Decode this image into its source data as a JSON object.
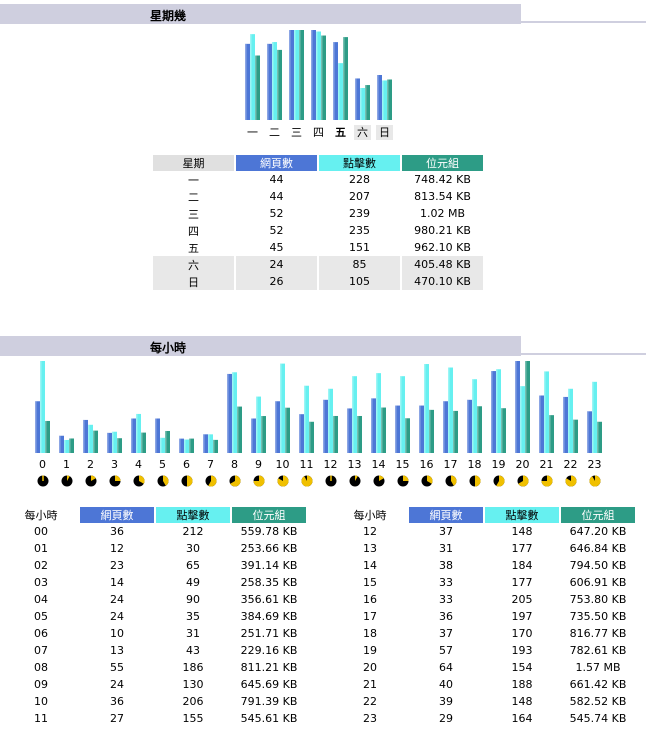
{
  "weekday": {
    "title": "星期幾",
    "headers": [
      "星期",
      "網頁數",
      "點擊數",
      "位元組"
    ],
    "rows": [
      {
        "day": "一",
        "pages": "44",
        "hits": "228",
        "bytes": "748.42 KB",
        "weekend": false
      },
      {
        "day": "二",
        "pages": "44",
        "hits": "207",
        "bytes": "813.54 KB",
        "weekend": false
      },
      {
        "day": "三",
        "pages": "52",
        "hits": "239",
        "bytes": "1.02 MB",
        "weekend": false
      },
      {
        "day": "四",
        "pages": "52",
        "hits": "235",
        "bytes": "980.21 KB",
        "weekend": false
      },
      {
        "day": "五",
        "pages": "45",
        "hits": "151",
        "bytes": "962.10 KB",
        "weekend": false
      },
      {
        "day": "六",
        "pages": "24",
        "hits": "85",
        "bytes": "405.48 KB",
        "weekend": true
      },
      {
        "day": "日",
        "pages": "26",
        "hits": "105",
        "bytes": "470.10 KB",
        "weekend": true
      }
    ]
  },
  "hourly": {
    "title": "每小時",
    "headers": [
      "每小時",
      "網頁數",
      "點擊數",
      "位元組"
    ],
    "rows": [
      {
        "hour": "00",
        "pages": "36",
        "hits": "212",
        "bytes": "559.78 KB"
      },
      {
        "hour": "01",
        "pages": "12",
        "hits": "30",
        "bytes": "253.66 KB"
      },
      {
        "hour": "02",
        "pages": "23",
        "hits": "65",
        "bytes": "391.14 KB"
      },
      {
        "hour": "03",
        "pages": "14",
        "hits": "49",
        "bytes": "258.35 KB"
      },
      {
        "hour": "04",
        "pages": "24",
        "hits": "90",
        "bytes": "356.61 KB"
      },
      {
        "hour": "05",
        "pages": "24",
        "hits": "35",
        "bytes": "384.69 KB"
      },
      {
        "hour": "06",
        "pages": "10",
        "hits": "31",
        "bytes": "251.71 KB"
      },
      {
        "hour": "07",
        "pages": "13",
        "hits": "43",
        "bytes": "229.16 KB"
      },
      {
        "hour": "08",
        "pages": "55",
        "hits": "186",
        "bytes": "811.21 KB"
      },
      {
        "hour": "09",
        "pages": "24",
        "hits": "130",
        "bytes": "645.69 KB"
      },
      {
        "hour": "10",
        "pages": "36",
        "hits": "206",
        "bytes": "791.39 KB"
      },
      {
        "hour": "11",
        "pages": "27",
        "hits": "155",
        "bytes": "545.61 KB"
      },
      {
        "hour": "12",
        "pages": "37",
        "hits": "148",
        "bytes": "647.20 KB"
      },
      {
        "hour": "13",
        "pages": "31",
        "hits": "177",
        "bytes": "646.84 KB"
      },
      {
        "hour": "14",
        "pages": "38",
        "hits": "184",
        "bytes": "794.50 KB"
      },
      {
        "hour": "15",
        "pages": "33",
        "hits": "177",
        "bytes": "606.91 KB"
      },
      {
        "hour": "16",
        "pages": "33",
        "hits": "205",
        "bytes": "753.80 KB"
      },
      {
        "hour": "17",
        "pages": "36",
        "hits": "197",
        "bytes": "735.50 KB"
      },
      {
        "hour": "18",
        "pages": "37",
        "hits": "170",
        "bytes": "816.77 KB"
      },
      {
        "hour": "19",
        "pages": "57",
        "hits": "193",
        "bytes": "782.61 KB"
      },
      {
        "hour": "20",
        "pages": "64",
        "hits": "154",
        "bytes": "1.57 MB"
      },
      {
        "hour": "21",
        "pages": "40",
        "hits": "188",
        "bytes": "661.42 KB"
      },
      {
        "hour": "22",
        "pages": "39",
        "hits": "148",
        "bytes": "582.52 KB"
      },
      {
        "hour": "23",
        "pages": "29",
        "hits": "164",
        "bytes": "545.74 KB"
      }
    ]
  },
  "colors": {
    "pages": "#4d76d6",
    "hits": "#66f0f0",
    "bytes": "#2d9c86",
    "header_gray": "#e0e0e0",
    "section_bar": "#cfcfdf"
  },
  "chart_data": [
    {
      "type": "bar",
      "title": "星期幾",
      "categories": [
        "一",
        "二",
        "三",
        "四",
        "五",
        "六",
        "日"
      ],
      "series": [
        {
          "name": "網頁數",
          "values": [
            44,
            44,
            52,
            52,
            45,
            24,
            26
          ]
        },
        {
          "name": "點擊數",
          "values": [
            228,
            207,
            239,
            235,
            151,
            85,
            105
          ]
        },
        {
          "name": "位元組 (KB)",
          "values": [
            748.42,
            813.54,
            1044.48,
            980.21,
            962.1,
            405.48,
            470.1
          ]
        }
      ]
    },
    {
      "type": "bar",
      "title": "每小時",
      "categories": [
        "0",
        "1",
        "2",
        "3",
        "4",
        "5",
        "6",
        "7",
        "8",
        "9",
        "10",
        "11",
        "12",
        "13",
        "14",
        "15",
        "16",
        "17",
        "18",
        "19",
        "20",
        "21",
        "22",
        "23"
      ],
      "series": [
        {
          "name": "網頁數",
          "values": [
            36,
            12,
            23,
            14,
            24,
            24,
            10,
            13,
            55,
            24,
            36,
            27,
            37,
            31,
            38,
            33,
            33,
            36,
            37,
            57,
            64,
            40,
            39,
            29
          ]
        },
        {
          "name": "點擊數",
          "values": [
            212,
            30,
            65,
            49,
            90,
            35,
            31,
            43,
            186,
            130,
            206,
            155,
            148,
            177,
            184,
            177,
            205,
            197,
            170,
            193,
            154,
            188,
            148,
            164
          ]
        },
        {
          "name": "位元組 (KB)",
          "values": [
            559.78,
            253.66,
            391.14,
            258.35,
            356.61,
            384.69,
            251.71,
            229.16,
            811.21,
            645.69,
            791.39,
            545.61,
            647.2,
            646.84,
            794.5,
            606.91,
            753.8,
            735.5,
            816.77,
            782.61,
            1607.68,
            661.42,
            582.52,
            545.74
          ]
        }
      ]
    }
  ]
}
